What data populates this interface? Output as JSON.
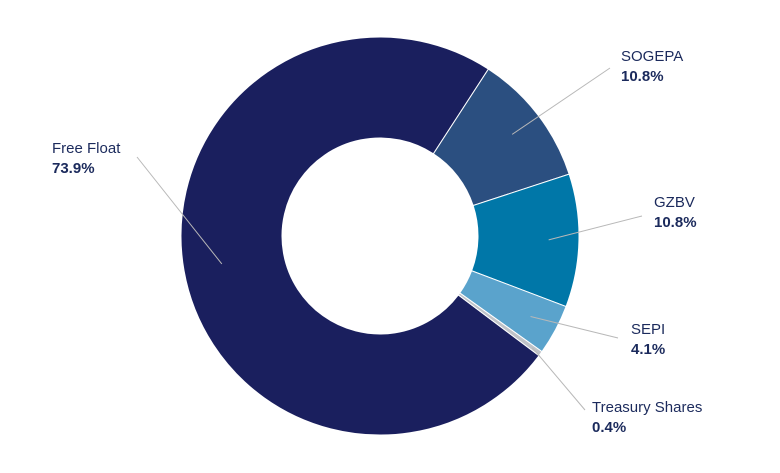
{
  "chart_data": {
    "type": "pie",
    "donut": true,
    "slices": [
      {
        "name": "Free Float",
        "value": 73.9,
        "label": "73.9%",
        "color": "#1a1f5e"
      },
      {
        "name": "SOGEPA",
        "value": 10.8,
        "label": "10.8%",
        "color": "#2b4f80"
      },
      {
        "name": "GZBV",
        "value": 10.8,
        "label": "10.8%",
        "color": "#0077a8"
      },
      {
        "name": "SEPI",
        "value": 4.1,
        "label": "4.1%",
        "color": "#5aa3cc"
      },
      {
        "name": "Treasury Shares",
        "value": 0.4,
        "label": "0.4%",
        "color": "#bfc3c8"
      }
    ],
    "legend": "none",
    "title": ""
  }
}
